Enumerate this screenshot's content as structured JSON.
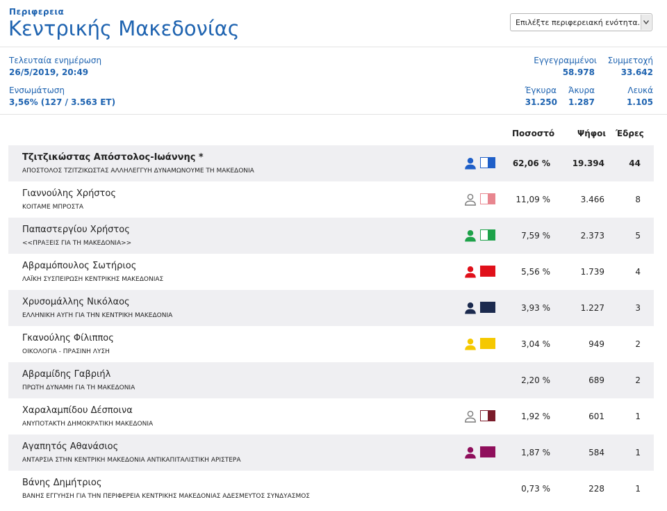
{
  "header": {
    "region_label": "Περιφερεια",
    "region_title": "Κεντρικής Μακεδονίας",
    "select_text": "Επιλέξτε περιφερειακή ενότητα..."
  },
  "stats": {
    "last_update_label": "Τελευταία ενημέρωση",
    "last_update_value": "26/5/2019, 20:49",
    "integration_label": "Ενσωμάτωση",
    "integration_value": "3,56% (127 / 3.563 ΕΤ)",
    "registered_label": "Εγγεγραμμένοι",
    "registered_value": "58.978",
    "turnout_label": "Συμμετοχή",
    "turnout_value": "33.642",
    "valid_label": "Έγκυρα",
    "valid_value": "31.250",
    "invalid_label": "Άκυρα",
    "invalid_value": "1.287",
    "blank_label": "Λευκά",
    "blank_value": "1.105"
  },
  "columns": {
    "percent": "Ποσοστό",
    "votes": "Ψήφοι",
    "seats": "Έδρες"
  },
  "candidates": [
    {
      "name": "Τζιτζικώστας Απόστολος-Ιωάννης *",
      "party": "ΑΠΟΣΤΟΛΟΣ ΤΖΙΤΖΙΚΩΣΤΑΣ ΑΛΛΗΛΕΓΓΥΗ ΔΥΝΑΜΩΝΟΥΜΕ ΤΗ ΜΑΚΕΔΟΝΙΑ",
      "percent": "62,06 %",
      "votes": "19.394",
      "seats": "44",
      "color": "#1f5fc8",
      "icon": "person-icon",
      "swatch": "half-filled"
    },
    {
      "name": "Γιαννούλης Χρήστος",
      "party": "ΚΟΙΤΑΜΕ ΜΠΡΟΣΤΑ",
      "percent": "11,09 %",
      "votes": "3.466",
      "seats": "8",
      "color": "#e8868f",
      "icon": "person-outline-icon",
      "swatch": "half-filled"
    },
    {
      "name": "Παπαστεργίου Χρήστος",
      "party": "<<ΠΡΑΞΕΙΣ ΓΙΑ ΤΗ ΜΑΚΕΔΟΝΙΑ>>",
      "percent": "7,59 %",
      "votes": "2.373",
      "seats": "5",
      "color": "#1ea24a",
      "icon": "person-icon",
      "swatch": "half-filled"
    },
    {
      "name": "Αβραμόπουλος Σωτήριος",
      "party": "ΛΑΪΚΗ ΣΥΣΠΕΙΡΩΣΗ ΚΕΝΤΡΙΚΗΣ ΜΑΚΕΔΟΝΙΑΣ",
      "percent": "5,56 %",
      "votes": "1.739",
      "seats": "4",
      "color": "#e0101a",
      "icon": "person-icon",
      "swatch": "filled"
    },
    {
      "name": "Χρυσομάλλης Νικόλαος",
      "party": "ΕΛΛΗΝΙΚΗ ΑΥΓΗ ΓΙΑ ΤΗΝ ΚΕΝΤΡΙΚΗ ΜΑΚΕΔΟΝΙΑ",
      "percent": "3,93 %",
      "votes": "1.227",
      "seats": "3",
      "color": "#1b2a4e",
      "icon": "person-icon",
      "swatch": "filled"
    },
    {
      "name": "Γκανούλης Φίλιππος",
      "party": "ΟΙΚΟΛΟΓΙΑ - ΠΡΑΣΙΝΗ ΛΥΣΗ",
      "percent": "3,04 %",
      "votes": "949",
      "seats": "2",
      "color": "#f5c800",
      "icon": "person-icon",
      "swatch": "filled"
    },
    {
      "name": "Αβραμίδης Γαβριήλ",
      "party": "ΠΡΩΤΗ ΔΥΝΑΜΗ ΓΙΑ ΤΗ ΜΑΚΕΔΟΝΙΑ",
      "percent": "2,20 %",
      "votes": "689",
      "seats": "2",
      "color": "",
      "icon": "",
      "swatch": "none"
    },
    {
      "name": "Χαραλαμπίδου Δέσποινα",
      "party": "ΑΝΥΠΟΤΑΚΤΗ ΔΗΜΟΚΡΑΤΙΚΗ ΜΑΚΕΔΟΝΙΑ",
      "percent": "1,92 %",
      "votes": "601",
      "seats": "1",
      "color": "#7a1b2a",
      "icon": "person-outline-icon",
      "swatch": "half-filled"
    },
    {
      "name": "Αγαπητός Αθανάσιος",
      "party": "ΑΝΤΑΡΣΙΑ ΣΤΗΝ ΚΕΝΤΡΙΚΗ ΜΑΚΕΔΟΝΙΑ ΑΝΤΙΚΑΠΙΤΑΛΙΣΤΙΚΗ ΑΡΙΣΤΕΡΑ",
      "percent": "1,87 %",
      "votes": "584",
      "seats": "1",
      "color": "#8f0f5c",
      "icon": "person-icon",
      "swatch": "filled"
    },
    {
      "name": "Βάνης Δημήτριος",
      "party": "ΒΑΝΗΣ ΕΓΓΥΗΣΗ ΓΙΑ ΤΗΝ ΠΕΡΙΦΕΡΕΙΑ ΚΕΝΤΡΙΚΗΣ ΜΑΚΕΔΟΝΙΑΣ ΑΔΕΣΜΕΥΤΟΣ ΣΥΝΔΥΑΣΜΟΣ",
      "percent": "0,73 %",
      "votes": "228",
      "seats": "1",
      "color": "",
      "icon": "",
      "swatch": "none"
    }
  ]
}
